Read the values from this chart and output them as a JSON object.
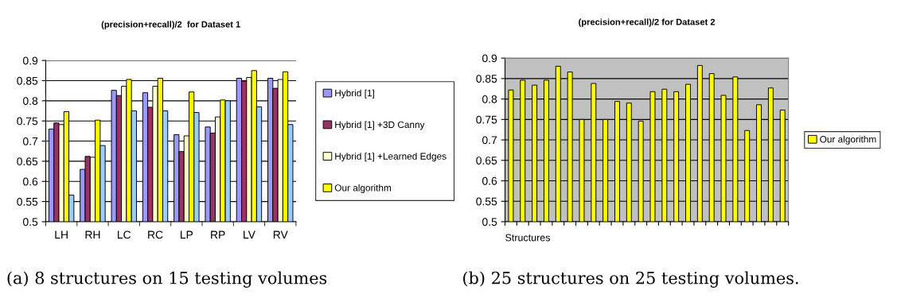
{
  "chart_data": [
    {
      "type": "bar",
      "title": "(precision+recall)/2  for Dataset 1",
      "categories": [
        "LH",
        "RH",
        "LC",
        "RC",
        "LP",
        "RP",
        "LV",
        "RV"
      ],
      "series": [
        {
          "name": "Hybrid [1]",
          "color": "#9999ff",
          "values": [
            0.73,
            0.63,
            0.826,
            0.82,
            0.716,
            0.735,
            0.856,
            0.856
          ]
        },
        {
          "name": "Hybrid [1] +3D Canny",
          "color": "#993366",
          "values": [
            0.745,
            0.662,
            0.813,
            0.784,
            0.674,
            0.72,
            0.849,
            0.831
          ]
        },
        {
          "name": "Hybrid [1] +Learned Edges",
          "color": "#ffffcc",
          "values": [
            0.741,
            0.66,
            0.836,
            0.836,
            0.713,
            0.76,
            0.858,
            0.853
          ]
        },
        {
          "name": "Our algorithm",
          "color": "#ffff00",
          "values": [
            0.773,
            0.752,
            0.853,
            0.856,
            0.822,
            0.802,
            0.875,
            0.872
          ]
        },
        {
          "color": "#99ccff",
          "values": [
            0.566,
            0.689,
            0.775,
            0.775,
            0.771,
            0.8,
            0.785,
            0.741
          ]
        }
      ],
      "ylim": [
        0.5,
        0.9
      ],
      "yticks": [
        0.5,
        0.55,
        0.6,
        0.65,
        0.7,
        0.75,
        0.8,
        0.85,
        0.9
      ],
      "grid": "y",
      "legend": "right",
      "annotations": [
        "(a) 8 structures on 15 testing volumes"
      ]
    },
    {
      "type": "bar",
      "title": "(precision+recall)/2 for Dataset 2",
      "xlabel": "Structures",
      "categories": [
        null,
        null,
        null,
        null,
        null,
        null,
        null,
        null,
        null,
        null,
        null,
        null,
        null,
        null,
        null,
        null,
        null,
        null,
        null,
        null,
        null,
        null,
        null,
        null
      ],
      "series": [
        {
          "name": "Our algorithm",
          "color": "#ffff00",
          "values": [
            0.822,
            0.846,
            0.834,
            0.846,
            0.88,
            0.866,
            0.75,
            0.838,
            0.75,
            0.794,
            0.79,
            0.746,
            0.818,
            0.824,
            0.818,
            0.836,
            0.882,
            0.862,
            0.809,
            0.854,
            0.723,
            0.786,
            0.827,
            0.773
          ]
        }
      ],
      "ylim": [
        0.5,
        0.9
      ],
      "yticks": [
        0.5,
        0.55,
        0.6,
        0.65,
        0.7,
        0.75,
        0.8,
        0.85,
        0.9
      ],
      "grid": "y",
      "legend": "right",
      "annotations": [
        "(b) 25 structures on 25 testing volumes."
      ]
    }
  ]
}
